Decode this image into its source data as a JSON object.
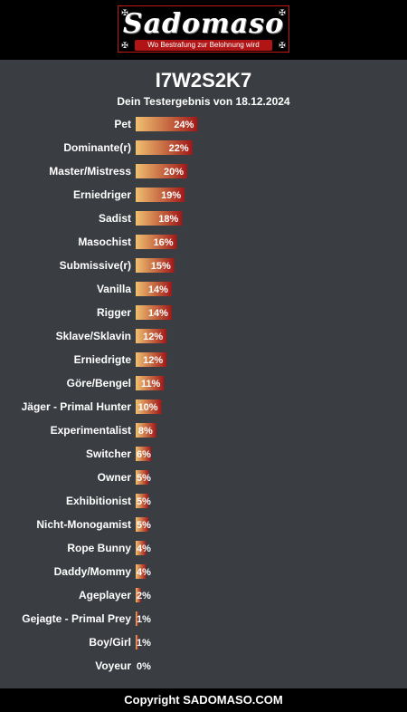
{
  "brand": {
    "logo_text": "Sadomaso",
    "tagline": "Wo Bestrafung zur Belohnung wird",
    "accent_color": "#b01414"
  },
  "result": {
    "code": "I7W2S2K7",
    "subtitle": "Dein Testergebnis von 18.12.2024"
  },
  "chart_data": {
    "type": "bar",
    "orientation": "horizontal",
    "value_suffix": "%",
    "bar_gradient": [
      "#f0c070",
      "#a01818"
    ],
    "categories": [
      "Pet",
      "Dominante(r)",
      "Master/Mistress",
      "Erniedriger",
      "Sadist",
      "Masochist",
      "Submissive(r)",
      "Vanilla",
      "Rigger",
      "Sklave/Sklavin",
      "Erniedrigte",
      "Göre/Bengel",
      "Jäger - Primal Hunter",
      "Experimentalist",
      "Switcher",
      "Owner",
      "Exhibitionist",
      "Nicht-Monogamist",
      "Rope Bunny",
      "Daddy/Mommy",
      "Ageplayer",
      "Gejagte - Primal Prey",
      "Boy/Girl",
      "Voyeur"
    ],
    "values": [
      24,
      22,
      20,
      19,
      18,
      16,
      15,
      14,
      14,
      12,
      12,
      11,
      10,
      8,
      6,
      5,
      5,
      5,
      4,
      4,
      2,
      1,
      1,
      0
    ],
    "labels": [
      "24%",
      "22%",
      "20%",
      "19%",
      "18%",
      "16%",
      "15%",
      "14%",
      "14%",
      "12%",
      "12%",
      "11%",
      "10%",
      "8%",
      "6%",
      "5%",
      "5%",
      "5%",
      "4%",
      "4%",
      "2%",
      "1%",
      "1%",
      "0%"
    ]
  },
  "footer": {
    "copyright": "Copyright SADOMASO.COM"
  }
}
